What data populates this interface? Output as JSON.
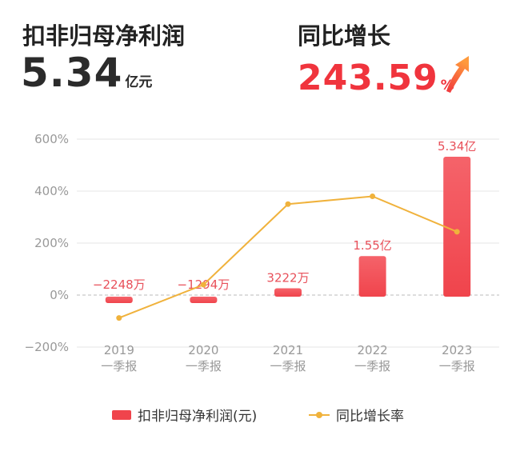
{
  "header": {
    "profit_label": "扣非归母净利润",
    "profit_value": "5.34",
    "profit_unit": "亿元",
    "growth_label": "同比增长",
    "growth_value": "243.59",
    "growth_unit": "%",
    "growth_icon": "arrow-up-icon"
  },
  "colors": {
    "bar": "#f0444c",
    "line": "#f0b23c",
    "growth_text": "#f0343d",
    "bar_label": "#e8505a",
    "axis_text": "#999999",
    "grid": "#e6e6e6"
  },
  "chart_data": {
    "type": "bar",
    "categories": [
      "2019\n一季报",
      "2020\n一季报",
      "2021\n一季报",
      "2022\n一季报",
      "2023\n一季报"
    ],
    "category_years": [
      "2019",
      "2020",
      "2021",
      "2022",
      "2023"
    ],
    "category_period": "一季报",
    "series": [
      {
        "name": "扣非归母净利润(元)",
        "type": "bar",
        "values": [
          -0.2248,
          -0.1294,
          0.3222,
          1.55,
          5.34
        ],
        "unit": "亿元",
        "labels": [
          "−2248万",
          "−1294万",
          "3222万",
          "1.55亿",
          "5.34亿"
        ]
      },
      {
        "name": "同比增长率",
        "type": "line",
        "values": [
          -88,
          40,
          350,
          380,
          243.59
        ],
        "unit": "%"
      }
    ],
    "y_ticks": [
      "600%",
      "400%",
      "200%",
      "0%",
      "−200%"
    ],
    "y_tick_values": [
      600,
      400,
      200,
      0,
      -200
    ],
    "ylim": [
      -200,
      600
    ],
    "grid": true,
    "legend_position": "bottom"
  }
}
